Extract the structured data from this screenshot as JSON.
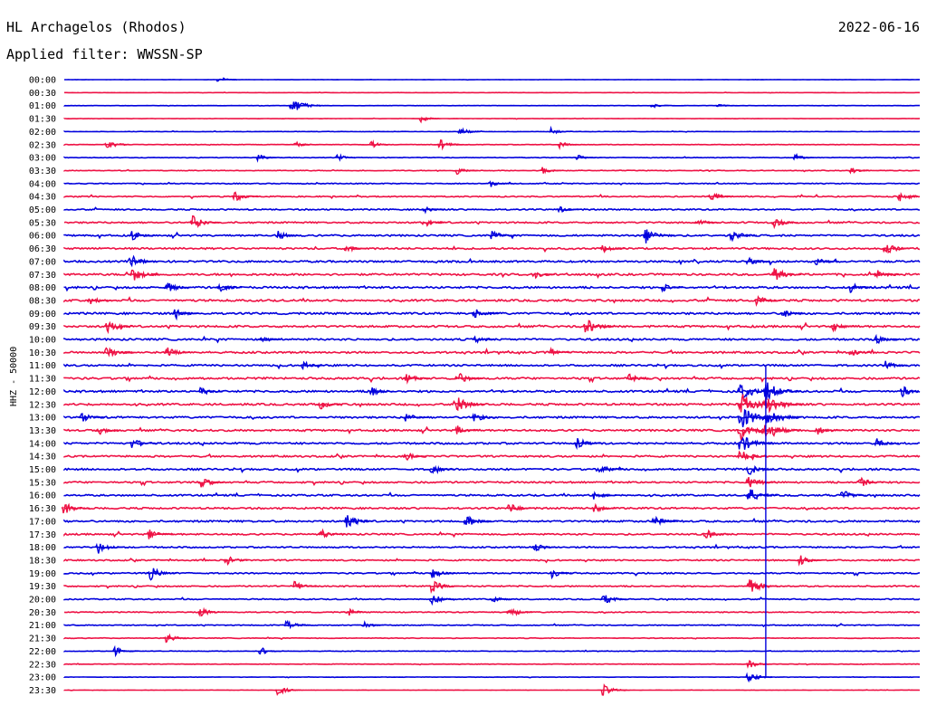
{
  "header": {
    "station": "HL Archagelos (Rhodos)",
    "date": "2022-06-16",
    "filter": "Applied filter: WWSSN-SP"
  },
  "chart_data": {
    "type": "line",
    "title": "HL Archagelos (Rhodos)",
    "subtitle": "Applied filter: WWSSN-SP",
    "ylabel": "HHZ - 50000",
    "xlabel": "",
    "grid": false,
    "row_labels": [
      "00:00",
      "00:30",
      "01:00",
      "01:30",
      "02:00",
      "02:30",
      "03:00",
      "03:30",
      "04:00",
      "04:30",
      "05:00",
      "05:30",
      "06:00",
      "06:30",
      "07:00",
      "07:30",
      "08:00",
      "08:30",
      "09:00",
      "09:30",
      "10:00",
      "10:30",
      "11:00",
      "11:30",
      "12:00",
      "12:30",
      "13:00",
      "13:30",
      "14:00",
      "14:30",
      "15:00",
      "15:30",
      "16:00",
      "16:30",
      "17:00",
      "17:30",
      "18:00",
      "18:30",
      "19:00",
      "19:30",
      "20:00",
      "20:30",
      "21:00",
      "21:30",
      "22:00",
      "22:30",
      "23:00",
      "23:30"
    ],
    "colors": [
      "#0000dd",
      "#ee1144"
    ],
    "noise_level": [
      0.04,
      0.05,
      0.05,
      0.06,
      0.08,
      0.1,
      0.13,
      0.15,
      0.2,
      0.25,
      0.3,
      0.35,
      0.38,
      0.4,
      0.42,
      0.45,
      0.45,
      0.45,
      0.45,
      0.45,
      0.42,
      0.42,
      0.4,
      0.45,
      0.45,
      0.45,
      0.42,
      0.42,
      0.42,
      0.4,
      0.4,
      0.38,
      0.38,
      0.4,
      0.4,
      0.35,
      0.32,
      0.3,
      0.3,
      0.28,
      0.25,
      0.22,
      0.2,
      0.15,
      0.12,
      0.1,
      0.08,
      0.06
    ],
    "events": [
      {
        "row": 0,
        "t": 0.181,
        "amp": 1.0
      },
      {
        "row": 2,
        "t": 0.266,
        "amp": 2.2
      },
      {
        "row": 2,
        "t": 0.688,
        "amp": 0.8
      },
      {
        "row": 2,
        "t": 0.765,
        "amp": 0.6
      },
      {
        "row": 3,
        "t": 0.418,
        "amp": 1.0
      },
      {
        "row": 4,
        "t": 0.463,
        "amp": 1.2
      },
      {
        "row": 4,
        "t": 0.57,
        "amp": 1.0
      },
      {
        "row": 5,
        "t": 0.05,
        "amp": 1.5
      },
      {
        "row": 5,
        "t": 0.27,
        "amp": 1.0
      },
      {
        "row": 5,
        "t": 0.36,
        "amp": 1.0
      },
      {
        "row": 5,
        "t": 0.44,
        "amp": 1.4
      },
      {
        "row": 5,
        "t": 0.58,
        "amp": 1.0
      },
      {
        "row": 6,
        "t": 0.227,
        "amp": 1.0
      },
      {
        "row": 6,
        "t": 0.32,
        "amp": 1.0
      },
      {
        "row": 6,
        "t": 0.6,
        "amp": 1.0
      },
      {
        "row": 6,
        "t": 0.855,
        "amp": 1.0
      },
      {
        "row": 7,
        "t": 0.46,
        "amp": 1.2
      },
      {
        "row": 7,
        "t": 0.56,
        "amp": 1.0
      },
      {
        "row": 7,
        "t": 0.92,
        "amp": 1.0
      },
      {
        "row": 8,
        "t": 0.5,
        "amp": 1.0
      },
      {
        "row": 9,
        "t": 0.2,
        "amp": 1.5
      },
      {
        "row": 9,
        "t": 0.755,
        "amp": 1.5
      },
      {
        "row": 9,
        "t": 0.977,
        "amp": 1.6
      },
      {
        "row": 10,
        "t": 0.42,
        "amp": 1.2
      },
      {
        "row": 10,
        "t": 0.58,
        "amp": 1.0
      },
      {
        "row": 11,
        "t": 0.15,
        "amp": 2.0
      },
      {
        "row": 11,
        "t": 0.42,
        "amp": 1.5
      },
      {
        "row": 11,
        "t": 0.74,
        "amp": 1.3
      },
      {
        "row": 11,
        "t": 0.83,
        "amp": 1.6
      },
      {
        "row": 12,
        "t": 0.08,
        "amp": 1.4
      },
      {
        "row": 12,
        "t": 0.25,
        "amp": 1.4
      },
      {
        "row": 12,
        "t": 0.5,
        "amp": 1.5
      },
      {
        "row": 12,
        "t": 0.68,
        "amp": 2.2
      },
      {
        "row": 12,
        "t": 0.78,
        "amp": 1.8
      },
      {
        "row": 13,
        "t": 0.33,
        "amp": 1.2
      },
      {
        "row": 13,
        "t": 0.63,
        "amp": 1.4
      },
      {
        "row": 13,
        "t": 0.96,
        "amp": 1.8
      },
      {
        "row": 14,
        "t": 0.08,
        "amp": 1.6
      },
      {
        "row": 14,
        "t": 0.8,
        "amp": 1.4
      },
      {
        "row": 14,
        "t": 0.88,
        "amp": 1.2
      },
      {
        "row": 15,
        "t": 0.08,
        "amp": 2.0
      },
      {
        "row": 15,
        "t": 0.55,
        "amp": 1.2
      },
      {
        "row": 15,
        "t": 0.83,
        "amp": 2.0
      },
      {
        "row": 15,
        "t": 0.95,
        "amp": 1.5
      },
      {
        "row": 16,
        "t": 0.12,
        "amp": 1.6
      },
      {
        "row": 16,
        "t": 0.18,
        "amp": 1.6
      },
      {
        "row": 16,
        "t": 0.7,
        "amp": 1.2
      },
      {
        "row": 16,
        "t": 0.92,
        "amp": 1.4
      },
      {
        "row": 17,
        "t": 0.03,
        "amp": 1.4
      },
      {
        "row": 17,
        "t": 0.81,
        "amp": 1.6
      },
      {
        "row": 18,
        "t": 0.13,
        "amp": 1.6
      },
      {
        "row": 18,
        "t": 0.48,
        "amp": 1.6
      },
      {
        "row": 18,
        "t": 0.84,
        "amp": 1.4
      },
      {
        "row": 19,
        "t": 0.05,
        "amp": 2.0
      },
      {
        "row": 19,
        "t": 0.61,
        "amp": 2.2
      },
      {
        "row": 19,
        "t": 0.9,
        "amp": 1.4
      },
      {
        "row": 20,
        "t": 0.23,
        "amp": 1.2
      },
      {
        "row": 20,
        "t": 0.48,
        "amp": 1.2
      },
      {
        "row": 20,
        "t": 0.95,
        "amp": 1.4
      },
      {
        "row": 21,
        "t": 0.05,
        "amp": 2.0
      },
      {
        "row": 21,
        "t": 0.12,
        "amp": 1.6
      },
      {
        "row": 21,
        "t": 0.57,
        "amp": 1.2
      },
      {
        "row": 21,
        "t": 0.92,
        "amp": 1.2
      },
      {
        "row": 22,
        "t": 0.28,
        "amp": 1.2
      },
      {
        "row": 22,
        "t": 0.96,
        "amp": 1.4
      },
      {
        "row": 23,
        "t": 0.4,
        "amp": 1.6
      },
      {
        "row": 23,
        "t": 0.46,
        "amp": 1.8
      },
      {
        "row": 23,
        "t": 0.66,
        "amp": 1.4
      },
      {
        "row": 24,
        "t": 0.16,
        "amp": 1.4
      },
      {
        "row": 24,
        "t": 0.36,
        "amp": 1.4
      },
      {
        "row": 24,
        "t": 0.79,
        "amp": 2.6
      },
      {
        "row": 24,
        "t": 0.82,
        "amp": 2.8
      },
      {
        "row": 24,
        "t": 0.98,
        "amp": 1.6
      },
      {
        "row": 25,
        "t": 0.3,
        "amp": 1.4
      },
      {
        "row": 25,
        "t": 0.46,
        "amp": 2.0
      },
      {
        "row": 25,
        "t": 0.79,
        "amp": 3.2
      },
      {
        "row": 25,
        "t": 0.82,
        "amp": 3.0
      },
      {
        "row": 26,
        "t": 0.02,
        "amp": 1.6
      },
      {
        "row": 26,
        "t": 0.4,
        "amp": 1.4
      },
      {
        "row": 26,
        "t": 0.48,
        "amp": 1.4
      },
      {
        "row": 26,
        "t": 0.79,
        "amp": 3.4
      },
      {
        "row": 26,
        "t": 0.82,
        "amp": 3.0
      },
      {
        "row": 27,
        "t": 0.04,
        "amp": 1.4
      },
      {
        "row": 27,
        "t": 0.46,
        "amp": 1.4
      },
      {
        "row": 27,
        "t": 0.79,
        "amp": 3.0
      },
      {
        "row": 27,
        "t": 0.82,
        "amp": 2.8
      },
      {
        "row": 27,
        "t": 0.88,
        "amp": 1.6
      },
      {
        "row": 28,
        "t": 0.08,
        "amp": 1.6
      },
      {
        "row": 28,
        "t": 0.6,
        "amp": 1.6
      },
      {
        "row": 28,
        "t": 0.79,
        "amp": 2.6
      },
      {
        "row": 28,
        "t": 0.95,
        "amp": 1.4
      },
      {
        "row": 29,
        "t": 0.4,
        "amp": 1.2
      },
      {
        "row": 29,
        "t": 0.79,
        "amp": 2.0
      },
      {
        "row": 30,
        "t": 0.43,
        "amp": 1.6
      },
      {
        "row": 30,
        "t": 0.63,
        "amp": 1.4
      },
      {
        "row": 30,
        "t": 0.8,
        "amp": 1.8
      },
      {
        "row": 31,
        "t": 0.16,
        "amp": 1.6
      },
      {
        "row": 31,
        "t": 0.8,
        "amp": 2.0
      },
      {
        "row": 31,
        "t": 0.93,
        "amp": 1.6
      },
      {
        "row": 32,
        "t": 0.62,
        "amp": 1.4
      },
      {
        "row": 32,
        "t": 0.8,
        "amp": 2.2
      },
      {
        "row": 32,
        "t": 0.91,
        "amp": 1.6
      },
      {
        "row": 33,
        "t": 0.0,
        "amp": 1.8
      },
      {
        "row": 33,
        "t": 0.52,
        "amp": 1.6
      },
      {
        "row": 33,
        "t": 0.62,
        "amp": 1.4
      },
      {
        "row": 34,
        "t": 0.33,
        "amp": 2.0
      },
      {
        "row": 34,
        "t": 0.47,
        "amp": 1.8
      },
      {
        "row": 34,
        "t": 0.69,
        "amp": 1.6
      },
      {
        "row": 35,
        "t": 0.1,
        "amp": 1.6
      },
      {
        "row": 35,
        "t": 0.3,
        "amp": 1.6
      },
      {
        "row": 35,
        "t": 0.75,
        "amp": 1.6
      },
      {
        "row": 36,
        "t": 0.04,
        "amp": 1.8
      },
      {
        "row": 36,
        "t": 0.55,
        "amp": 1.4
      },
      {
        "row": 37,
        "t": 0.19,
        "amp": 1.4
      },
      {
        "row": 37,
        "t": 0.86,
        "amp": 1.6
      },
      {
        "row": 38,
        "t": 0.1,
        "amp": 2.0
      },
      {
        "row": 38,
        "t": 0.43,
        "amp": 1.6
      },
      {
        "row": 38,
        "t": 0.57,
        "amp": 1.4
      },
      {
        "row": 39,
        "t": 0.27,
        "amp": 1.4
      },
      {
        "row": 39,
        "t": 0.43,
        "amp": 1.8
      },
      {
        "row": 39,
        "t": 0.8,
        "amp": 2.2
      },
      {
        "row": 40,
        "t": 0.43,
        "amp": 1.6
      },
      {
        "row": 40,
        "t": 0.5,
        "amp": 1.2
      },
      {
        "row": 40,
        "t": 0.63,
        "amp": 1.6
      },
      {
        "row": 41,
        "t": 0.16,
        "amp": 1.4
      },
      {
        "row": 41,
        "t": 0.33,
        "amp": 1.4
      },
      {
        "row": 41,
        "t": 0.52,
        "amp": 1.6
      },
      {
        "row": 42,
        "t": 0.26,
        "amp": 1.6
      },
      {
        "row": 42,
        "t": 0.35,
        "amp": 1.2
      },
      {
        "row": 43,
        "t": 0.12,
        "amp": 1.4
      },
      {
        "row": 44,
        "t": 0.06,
        "amp": 1.4
      },
      {
        "row": 44,
        "t": 0.23,
        "amp": 1.2
      },
      {
        "row": 45,
        "t": 0.8,
        "amp": 1.4
      },
      {
        "row": 46,
        "t": 0.8,
        "amp": 1.6
      },
      {
        "row": 47,
        "t": 0.25,
        "amp": 1.4
      },
      {
        "row": 47,
        "t": 0.63,
        "amp": 1.6
      }
    ]
  }
}
